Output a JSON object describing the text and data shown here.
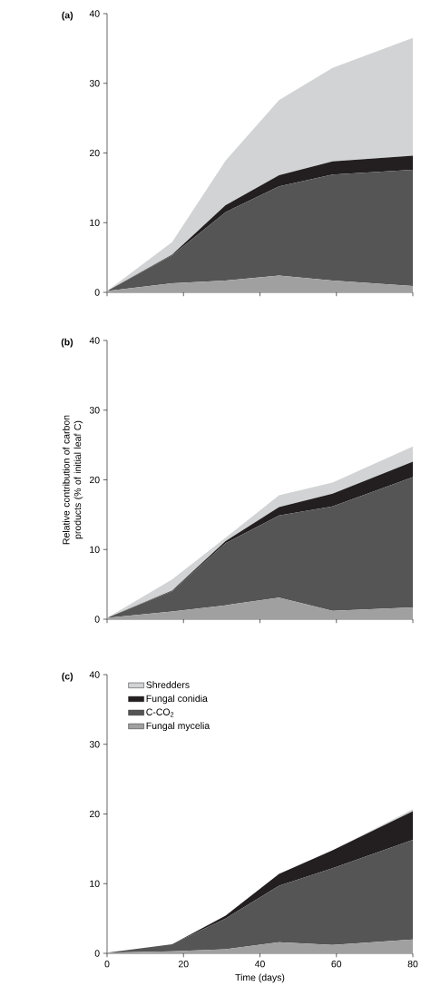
{
  "chart_data": [
    {
      "type": "area",
      "title": "(a)",
      "stacked": true,
      "x": [
        0,
        17,
        31,
        45,
        59,
        80
      ],
      "xlim": [
        0,
        80
      ],
      "xticks": [
        0,
        20,
        40,
        60,
        80
      ],
      "ylim": [
        0,
        40
      ],
      "yticks": [
        0,
        10,
        20,
        30,
        40
      ],
      "tick_labels": "y",
      "legend": false,
      "series": [
        {
          "color": "#a0a0a0",
          "values": [
            0.2,
            1.3,
            1.7,
            2.4,
            1.7,
            0.9
          ]
        },
        {
          "color": "#555555",
          "values": [
            0,
            4.0,
            9.8,
            12.8,
            15.2,
            16.7
          ]
        },
        {
          "color": "#231f20",
          "values": [
            0,
            0.1,
            1.0,
            1.6,
            1.9,
            2.0
          ]
        },
        {
          "color": "#d1d3d4",
          "values": [
            0,
            1.8,
            6.4,
            10.8,
            13.4,
            16.9
          ]
        }
      ]
    },
    {
      "type": "area",
      "title": "(b)",
      "ylabel": "Relative contribution of carbon products (% of initial leaf C)",
      "stacked": true,
      "x": [
        0,
        17,
        31,
        45,
        59,
        80
      ],
      "xlim": [
        0,
        80
      ],
      "xticks": [
        0,
        20,
        40,
        60,
        80
      ],
      "ylim": [
        0,
        40
      ],
      "yticks": [
        0,
        10,
        20,
        30,
        40
      ],
      "tick_labels": "y",
      "legend": false,
      "series": [
        {
          "color": "#a0a0a0",
          "values": [
            0.2,
            1.1,
            2.0,
            3.1,
            1.2,
            1.7
          ]
        },
        {
          "color": "#555555",
          "values": [
            0,
            2.9,
            8.9,
            11.8,
            15.0,
            18.7
          ]
        },
        {
          "color": "#231f20",
          "values": [
            0,
            0.1,
            0.3,
            1.2,
            1.8,
            2.2
          ]
        },
        {
          "color": "#d1d3d4",
          "values": [
            0,
            1.6,
            0.5,
            1.7,
            1.6,
            2.2
          ]
        }
      ]
    },
    {
      "type": "area",
      "title": "(c)",
      "xlabel": "Time (days)",
      "stacked": true,
      "x": [
        0,
        17,
        31,
        45,
        59,
        80
      ],
      "xlim": [
        0,
        80
      ],
      "xticks": [
        0,
        20,
        40,
        60,
        80
      ],
      "ylim": [
        0,
        40
      ],
      "yticks": [
        0,
        10,
        20,
        30,
        40
      ],
      "legend": "top left",
      "series": [
        {
          "name": "Fungal mycelia",
          "color": "#a0a0a0",
          "values": [
            0.1,
            0.3,
            0.6,
            1.6,
            1.2,
            2.0
          ]
        },
        {
          "name": "C-CO$_{2}$",
          "color": "#555555",
          "values": [
            0,
            1.0,
            4.4,
            8.1,
            11.0,
            14.3
          ]
        },
        {
          "name": "Fungal conidia",
          "color": "#231f20",
          "values": [
            0,
            0,
            0.4,
            1.7,
            2.6,
            4.1
          ]
        },
        {
          "name": "Shredders",
          "color": "#d1d3d4",
          "values": [
            0,
            0,
            0,
            0,
            0,
            0.3
          ]
        }
      ]
    }
  ]
}
